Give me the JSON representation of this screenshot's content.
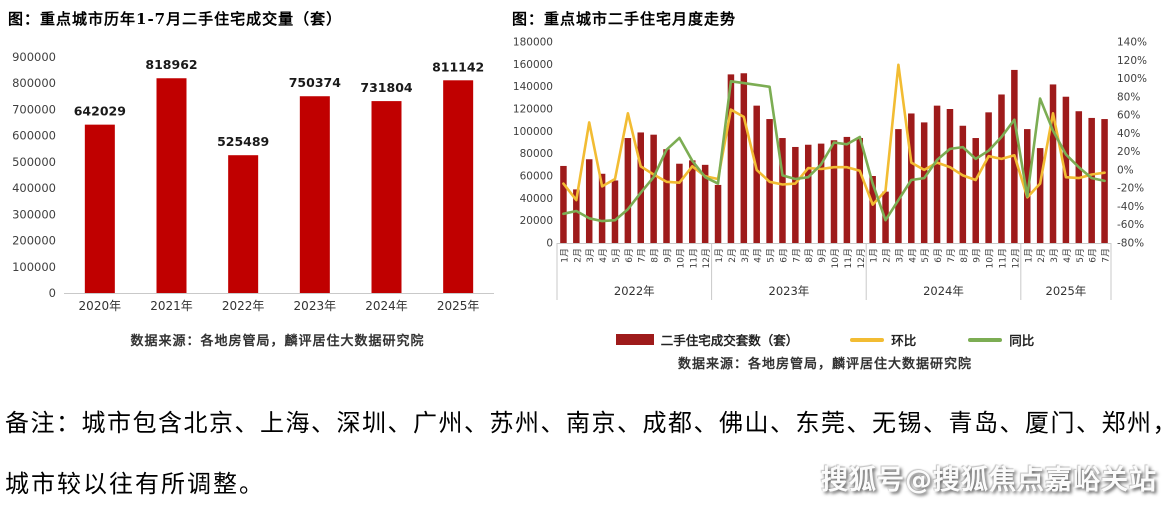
{
  "chart_data": [
    {
      "type": "bar",
      "title": "图：重点城市历年1-7月二手住宅成交量（套）",
      "source": "数据来源：各地房管局，麟评居住大数据研究院",
      "categories": [
        "2020年",
        "2021年",
        "2022年",
        "2023年",
        "2024年",
        "2025年"
      ],
      "values": [
        642029,
        818962,
        525489,
        750374,
        731804,
        811142
      ],
      "bar_color": "#C00000",
      "ylabel": "",
      "xlabel": "",
      "ylim": [
        0,
        900000
      ],
      "ystep": 100000,
      "grid": false,
      "value_labels_shown": true
    },
    {
      "type": "combo",
      "title": "图：重点城市二手住宅月度走势",
      "source": "数据来源：各地房管局，麟评居住大数据研究院",
      "year_groups": [
        {
          "label": "2022年",
          "months": 12
        },
        {
          "label": "2023年",
          "months": 12
        },
        {
          "label": "2024年",
          "months": 12
        },
        {
          "label": "2025年",
          "months": 7
        }
      ],
      "month_label_format": "{n}月",
      "left_axis": {
        "min": 0,
        "max": 180000,
        "step": 20000
      },
      "right_axis": {
        "min": -80,
        "max": 140,
        "step": 20,
        "suffix": "%"
      },
      "grid": false,
      "legend_position": "bottom",
      "series": [
        {
          "name": "二手住宅成交套数（套）",
          "type": "bar",
          "axis": "left",
          "color": "#9E1B1B",
          "values": [
            69000,
            48000,
            75000,
            62000,
            56000,
            94000,
            99000,
            97000,
            84000,
            71000,
            74000,
            70000,
            52000,
            151000,
            152000,
            123000,
            111000,
            94000,
            86000,
            88000,
            89000,
            92000,
            95000,
            94000,
            60000,
            46000,
            102000,
            116000,
            108000,
            123000,
            120000,
            105000,
            94000,
            117000,
            133000,
            155000,
            102000,
            85000,
            142000,
            131000,
            118000,
            112000,
            111000
          ]
        },
        {
          "name": "环比",
          "type": "line",
          "axis": "right",
          "color": "#F2BC33",
          "values": [
            -15,
            -33,
            52,
            -18,
            -10,
            62,
            4,
            -5,
            -13,
            -14,
            4,
            -7,
            -10,
            66,
            58,
            0,
            -13,
            -16,
            -15,
            2,
            1,
            3,
            3,
            -1,
            -38,
            -23,
            115,
            8,
            0,
            8,
            3,
            -6,
            -11,
            15,
            12,
            16,
            -30,
            -15,
            62,
            -8,
            -9,
            -5,
            -3
          ]
        },
        {
          "name": "同比",
          "type": "line",
          "axis": "right",
          "color": "#7CAD53",
          "values": [
            -48,
            -45,
            -53,
            -56,
            -55,
            -43,
            -25,
            -8,
            22,
            35,
            10,
            -8,
            -15,
            97,
            95,
            93,
            91,
            -6,
            -10,
            -8,
            6,
            30,
            28,
            36,
            -15,
            -55,
            -33,
            -11,
            -9,
            11,
            23,
            25,
            12,
            21,
            36,
            55,
            -29,
            78,
            43,
            17,
            3,
            -9,
            -12
          ]
        }
      ]
    }
  ],
  "note": {
    "line1": "备注：城市包含北京、上海、深圳、广州、苏州、南京、成都、佛山、东莞、无锡、青岛、厦门、郑州，",
    "line2": "城市较以往有所调整。"
  },
  "watermark": {
    "text": "搜狐号@搜狐焦点嘉峪关站"
  }
}
